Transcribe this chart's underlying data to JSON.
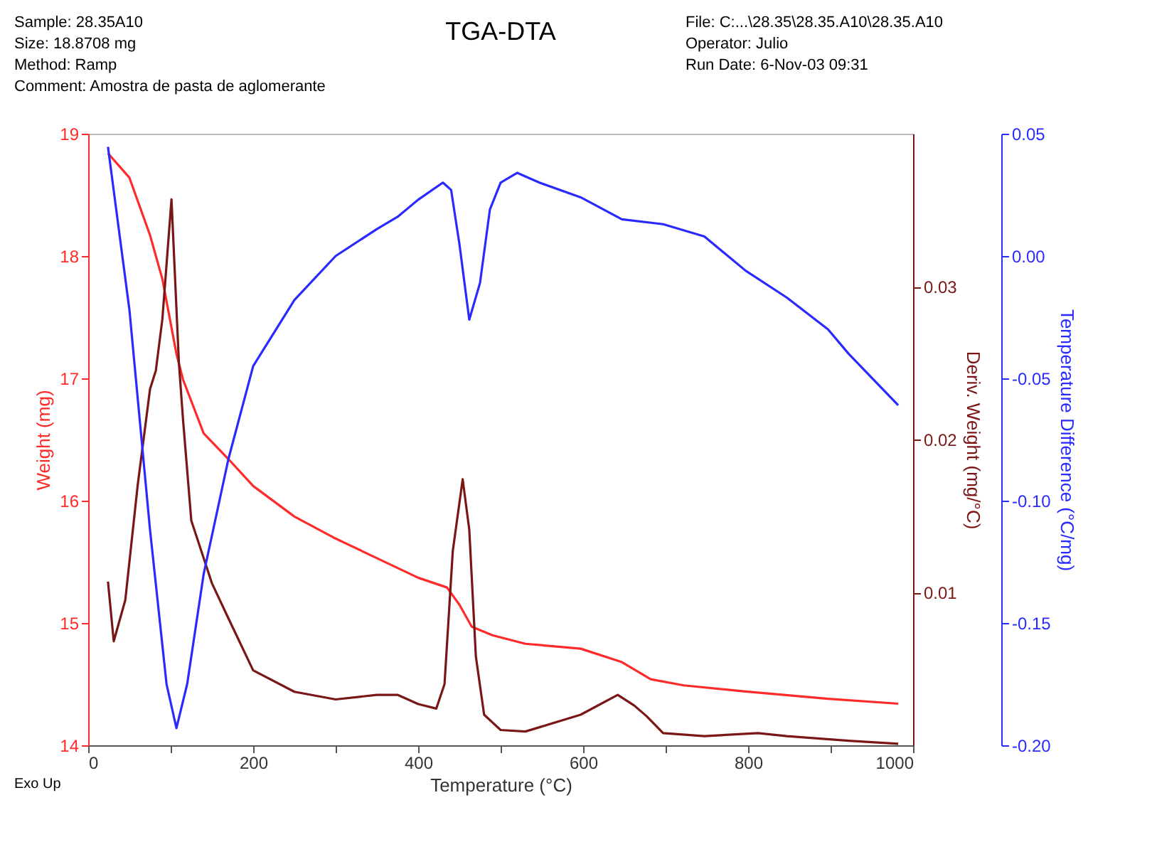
{
  "chart_data": {
    "type": "line",
    "title": "TGA-DTA",
    "xlabel": "Temperature (°C)",
    "ylabel": "Weight (mg)",
    "y2label": "Deriv. Weight (mg/°C)",
    "y3label": "Temperature Difference (°C/mg)",
    "annotations": [
      "Sample: 28.35A10",
      "Size:   18.8708 mg",
      "Method: Ramp",
      "Comment: Amostra de pasta de aglomerante",
      "File: C:...\\28.35\\28.35.A10\\28.35.A10",
      "Operator: Julio",
      "Run Date: 6-Nov-03 09:31",
      "Exo Up"
    ],
    "xlim": [
      0,
      1000
    ],
    "xticks": [
      0,
      {
        "value": 100,
        "label": null
      },
      200,
      {
        "value": 300,
        "label": null
      },
      400,
      {
        "value": 500,
        "label": null
      },
      600,
      {
        "value": 700,
        "label": null
      },
      800,
      {
        "value": 900,
        "label": null
      },
      {
        "value": 1000,
        "label": "1000"
      }
    ],
    "ylim": [
      14,
      19
    ],
    "yticks": [
      14,
      15,
      16,
      17,
      18,
      19
    ],
    "y2lim": [
      0,
      0.04
    ],
    "y2ticks": [
      0.01,
      0.02,
      0.03
    ],
    "y3lim": [
      -0.2,
      0.05
    ],
    "y3ticks": [
      {
        "value": -0.2,
        "label": "-0.20"
      },
      {
        "value": -0.15,
        "label": "-0.15"
      },
      {
        "value": -0.1,
        "label": "-0.10"
      },
      {
        "value": -0.05,
        "label": "-0.05"
      },
      {
        "value": 0.0,
        "label": "0.00"
      },
      {
        "value": 0.05,
        "label": "0.05"
      }
    ],
    "grid": false,
    "line_style": "solid",
    "marker": "none",
    "series": [
      {
        "color": "#ff2a2a",
        "axis": "y",
        "x": [
          24,
          50,
          75,
          90,
          107,
          115,
          140,
          170,
          200,
          250,
          300,
          350,
          400,
          435,
          450,
          465,
          490,
          530,
          597,
          647,
          682,
          722,
          797,
          897,
          982
        ],
        "values": [
          18.84,
          18.64,
          18.17,
          17.81,
          17.2,
          16.99,
          16.55,
          16.34,
          16.12,
          15.87,
          15.69,
          15.53,
          15.37,
          15.29,
          15.15,
          14.97,
          14.9,
          14.83,
          14.79,
          14.68,
          14.54,
          14.49,
          14.44,
          14.38,
          14.34
        ]
      },
      {
        "color": "#7a1616",
        "axis": "y2",
        "x": [
          24,
          31,
          45,
          60,
          75,
          82,
          90,
          101,
          110,
          115,
          125,
          150,
          170,
          200,
          250,
          300,
          350,
          375,
          400,
          422,
          432,
          442,
          454,
          462,
          470,
          480,
          500,
          530,
          597,
          642,
          662,
          677,
          697,
          747,
          812,
          847,
          922,
          982
        ],
        "values": [
          0.0107,
          0.0068,
          0.0095,
          0.017,
          0.0233,
          0.0245,
          0.0279,
          0.0357,
          0.025,
          0.0213,
          0.0147,
          0.0106,
          0.0083,
          0.0049,
          0.0035,
          0.003,
          0.0033,
          0.0033,
          0.0027,
          0.0024,
          0.004,
          0.0127,
          0.0174,
          0.0141,
          0.0058,
          0.002,
          0.001,
          0.0009,
          0.002,
          0.0033,
          0.0026,
          0.0019,
          0.0008,
          0.0006,
          0.0008,
          0.0006,
          0.0003,
          0.0001
        ]
      },
      {
        "color": "#2a2aff",
        "axis": "y3",
        "x": [
          24,
          50,
          75,
          95,
          107,
          120,
          140,
          170,
          200,
          250,
          300,
          350,
          375,
          400,
          430,
          440,
          450,
          462,
          475,
          487,
          500,
          520,
          547,
          597,
          647,
          697,
          747,
          797,
          847,
          897,
          922,
          982
        ],
        "values": [
          0.0446,
          -0.022,
          -0.112,
          -0.175,
          -0.193,
          -0.175,
          -0.13,
          -0.083,
          -0.045,
          -0.018,
          0.0,
          0.011,
          0.016,
          0.023,
          0.03,
          0.027,
          0.005,
          -0.026,
          -0.011,
          0.019,
          0.03,
          0.034,
          0.03,
          0.024,
          0.015,
          0.013,
          0.008,
          -0.006,
          -0.017,
          -0.03,
          -0.04,
          -0.061
        ]
      }
    ]
  }
}
